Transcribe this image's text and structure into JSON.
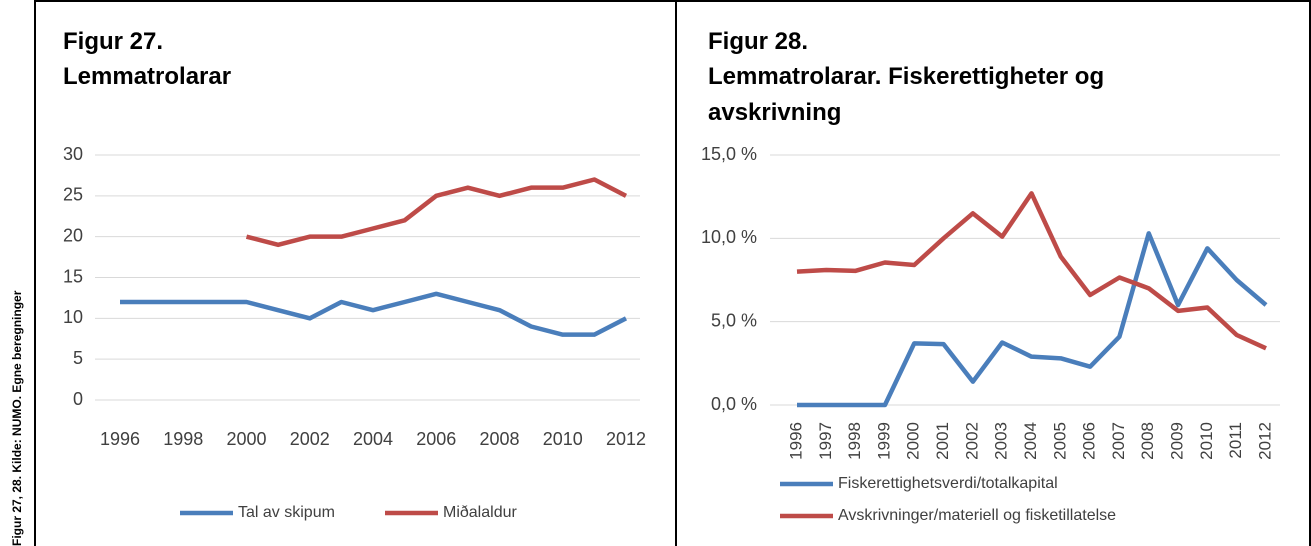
{
  "side_note": "Figur 27, 28. Kilde: NUMO. Egne beregninger",
  "chart_data": [
    {
      "type": "line",
      "title": "Figur 27.",
      "subtitle": "Lemmatrolarar",
      "x": [
        1996,
        1997,
        1998,
        1999,
        2000,
        2001,
        2002,
        2003,
        2004,
        2005,
        2006,
        2007,
        2008,
        2009,
        2010,
        2011,
        2012
      ],
      "xlim": [
        1996,
        2012
      ],
      "xticks": [
        1996,
        1998,
        2000,
        2002,
        2004,
        2006,
        2008,
        2010,
        2012
      ],
      "ylim": [
        0,
        30
      ],
      "yticks": [
        0,
        5,
        10,
        15,
        20,
        25,
        30
      ],
      "grid": true,
      "legend": "bottom",
      "series": [
        {
          "name": "Tal av skipum",
          "color": "#4a7ebb",
          "values": [
            12,
            12,
            12,
            12,
            12,
            11,
            10,
            12,
            11,
            12,
            13,
            12,
            11,
            9,
            8,
            8,
            10
          ]
        },
        {
          "name": "Miðalaldur",
          "color": "#be4b48",
          "values": [
            null,
            null,
            null,
            null,
            20,
            19,
            20,
            20,
            21,
            22,
            25,
            26,
            25,
            26,
            26,
            27,
            25
          ]
        }
      ]
    },
    {
      "type": "line",
      "title": "Figur 28.",
      "subtitle": "Lemmatrolarar. Fiskerettigheter og",
      "subtitle2": "avskrivning",
      "categories": [
        "1996",
        "1997",
        "1998",
        "1999",
        "2000",
        "2001",
        "2002",
        "2003",
        "2004",
        "2005",
        "2006",
        "2007",
        "2008",
        "2009",
        "2010",
        "2011",
        "2012"
      ],
      "ylim": [
        0,
        15
      ],
      "yticks": [
        {
          "value": 0,
          "label": "0,0 %"
        },
        {
          "value": 5,
          "label": "5,0 %"
        },
        {
          "value": 10,
          "label": "10,0 %"
        },
        {
          "value": 15,
          "label": "15,0 %"
        }
      ],
      "grid": true,
      "legend": "bottom",
      "series": [
        {
          "name": "Fiskerettighetsverdi/totalkapital",
          "color": "#4a7ebb",
          "values": [
            0,
            0,
            0,
            0,
            3.7,
            3.65,
            1.4,
            3.75,
            2.9,
            2.8,
            2.3,
            4.1,
            10.3,
            6.0,
            9.4,
            7.5,
            6.0
          ]
        },
        {
          "name": "Avskrivninger/materiell og fisketillatelse",
          "color": "#be4b48",
          "values": [
            8.0,
            8.1,
            8.05,
            8.55,
            8.4,
            10.0,
            11.5,
            10.1,
            12.7,
            8.9,
            6.6,
            7.65,
            7.0,
            5.65,
            5.85,
            4.2,
            3.4
          ]
        }
      ]
    }
  ]
}
